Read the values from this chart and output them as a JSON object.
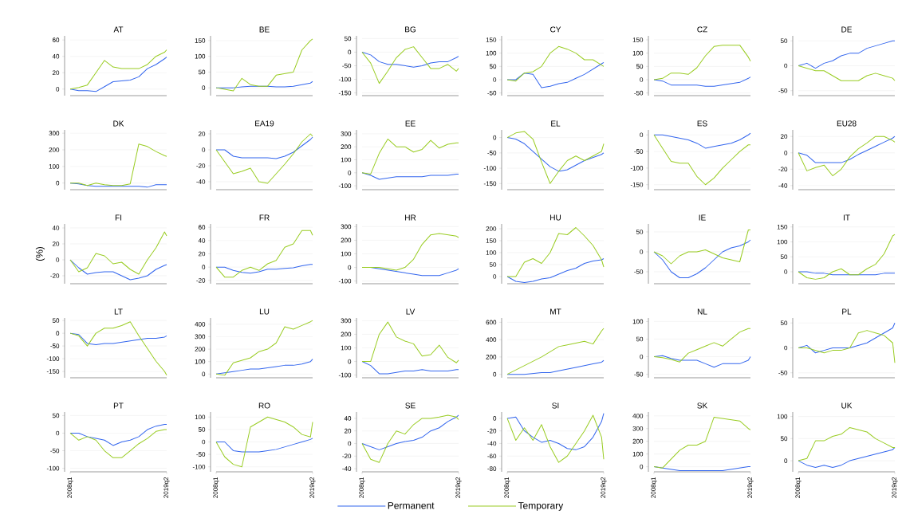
{
  "chart_data": [
    {
      "type": "line",
      "title": "AT",
      "x": [
        "2008-01",
        "2009-01",
        "2010-01",
        "2011-01",
        "2012-01",
        "2013-01",
        "2014-01",
        "2015-01",
        "2016-01",
        "2017-01",
        "2018-01",
        "2019-01",
        "2019-04"
      ],
      "xlim": [
        "2008-01",
        "2019-04"
      ],
      "ylim": [
        -8,
        65
      ],
      "yticks": [
        0,
        20,
        40,
        60
      ],
      "grid": "y",
      "tick_labels": "y",
      "legend": "bottom",
      "series": [
        {
          "name": "Permanent",
          "color": "#3366ee",
          "values": [
            0,
            -2,
            -2,
            -3,
            3,
            9,
            10,
            11,
            15,
            25,
            30,
            37,
            39
          ]
        },
        {
          "name": "Temporary",
          "color": "#99cc22",
          "values": [
            0,
            2,
            5,
            20,
            35,
            27,
            25,
            25,
            25,
            30,
            40,
            45,
            48
          ]
        }
      ]
    },
    {
      "type": "line",
      "title": "BE",
      "x": [
        "2008-01",
        "2009-01",
        "2010-01",
        "2011-01",
        "2012-01",
        "2013-01",
        "2014-01",
        "2015-01",
        "2016-01",
        "2017-01",
        "2018-01",
        "2019-01",
        "2019-04"
      ],
      "xlim": [
        "2008-01",
        "2019-04"
      ],
      "ylim": [
        -25,
        165
      ],
      "yticks": [
        0,
        50,
        100,
        150
      ],
      "grid": "y",
      "tick_labels": "y",
      "series": [
        {
          "color": "#3366ee",
          "values": [
            0,
            0,
            0,
            3,
            5,
            5,
            5,
            3,
            3,
            5,
            10,
            15,
            20
          ]
        },
        {
          "color": "#99cc22",
          "values": [
            0,
            -5,
            -10,
            30,
            10,
            5,
            5,
            40,
            45,
            50,
            120,
            150,
            155
          ]
        }
      ]
    },
    {
      "type": "line",
      "title": "BG",
      "x": [
        "2008-01",
        "2009-01",
        "2010-01",
        "2011-01",
        "2012-01",
        "2013-01",
        "2014-01",
        "2015-01",
        "2016-01",
        "2017-01",
        "2018-01",
        "2019-01",
        "2019-04"
      ],
      "xlim": [
        "2008-01",
        "2019-04"
      ],
      "ylim": [
        -160,
        60
      ],
      "yticks": [
        -150,
        -100,
        -50,
        0,
        50
      ],
      "grid": "y",
      "tick_labels": "y",
      "series": [
        {
          "color": "#3366ee",
          "values": [
            0,
            -10,
            -35,
            -45,
            -45,
            -50,
            -55,
            -50,
            -40,
            -35,
            -35,
            -20,
            -15
          ]
        },
        {
          "color": "#99cc22",
          "values": [
            0,
            -40,
            -115,
            -70,
            -20,
            10,
            20,
            -20,
            -60,
            -60,
            -45,
            -70,
            -60
          ]
        }
      ]
    },
    {
      "type": "line",
      "title": "CY",
      "x": [
        "2008-01",
        "2009-01",
        "2010-01",
        "2011-01",
        "2012-01",
        "2013-01",
        "2014-01",
        "2015-01",
        "2016-01",
        "2017-01",
        "2018-01",
        "2019-01",
        "2019-04"
      ],
      "xlim": [
        "2008-01",
        "2019-04"
      ],
      "ylim": [
        -60,
        165
      ],
      "yticks": [
        -50,
        0,
        50,
        100,
        150
      ],
      "grid": "y",
      "tick_labels": "y",
      "series": [
        {
          "color": "#3366ee",
          "values": [
            0,
            0,
            25,
            20,
            -30,
            -25,
            -15,
            -10,
            5,
            20,
            40,
            60,
            65
          ]
        },
        {
          "color": "#99cc22",
          "values": [
            0,
            -5,
            25,
            30,
            50,
            100,
            125,
            115,
            100,
            75,
            75,
            55,
            50
          ]
        }
      ]
    },
    {
      "type": "line",
      "title": "CZ",
      "x": [
        "2008-01",
        "2009-01",
        "2010-01",
        "2011-01",
        "2012-01",
        "2013-01",
        "2014-01",
        "2015-01",
        "2016-01",
        "2017-01",
        "2018-01",
        "2019-01",
        "2019-04"
      ],
      "xlim": [
        "2008-01",
        "2019-04"
      ],
      "ylim": [
        -60,
        165
      ],
      "yticks": [
        -50,
        0,
        50,
        100,
        150
      ],
      "grid": "y",
      "tick_labels": "y",
      "series": [
        {
          "color": "#3366ee",
          "values": [
            0,
            -5,
            -20,
            -20,
            -20,
            -20,
            -25,
            -25,
            -20,
            -15,
            -10,
            5,
            10
          ]
        },
        {
          "color": "#99cc22",
          "values": [
            0,
            5,
            25,
            25,
            20,
            45,
            90,
            125,
            130,
            130,
            130,
            85,
            70
          ]
        }
      ]
    },
    {
      "type": "line",
      "title": "DE",
      "x": [
        "2008-01",
        "2009-01",
        "2010-01",
        "2011-01",
        "2012-01",
        "2013-01",
        "2014-01",
        "2015-01",
        "2016-01",
        "2017-01",
        "2018-01",
        "2019-01",
        "2019-04"
      ],
      "xlim": [
        "2008-01",
        "2019-04"
      ],
      "ylim": [
        -60,
        60
      ],
      "yticks": [
        -50,
        0,
        50
      ],
      "grid": "y",
      "tick_labels": "y",
      "series": [
        {
          "color": "#3366ee",
          "values": [
            0,
            5,
            -5,
            5,
            10,
            20,
            25,
            25,
            35,
            40,
            45,
            50,
            50
          ]
        },
        {
          "color": "#99cc22",
          "values": [
            0,
            -5,
            -10,
            -10,
            -20,
            -30,
            -30,
            -30,
            -20,
            -15,
            -20,
            -25,
            -30
          ]
        }
      ]
    },
    {
      "type": "line",
      "title": "DK",
      "x": [
        "2008-01",
        "2009-01",
        "2010-01",
        "2011-01",
        "2012-01",
        "2013-01",
        "2014-01",
        "2015-01",
        "2016-01",
        "2017-01",
        "2018-01",
        "2019-01",
        "2019-04"
      ],
      "xlim": [
        "2008-01",
        "2019-04"
      ],
      "ylim": [
        -40,
        320
      ],
      "yticks": [
        0,
        100,
        200,
        300
      ],
      "grid": "y",
      "tick_labels": "y",
      "series": [
        {
          "color": "#3366ee",
          "values": [
            0,
            -5,
            -15,
            -20,
            -20,
            -20,
            -20,
            -20,
            -20,
            -25,
            -10,
            -10,
            -10
          ]
        },
        {
          "color": "#99cc22",
          "values": [
            0,
            0,
            -15,
            0,
            -10,
            -15,
            -15,
            -5,
            235,
            220,
            190,
            165,
            160
          ]
        }
      ]
    },
    {
      "type": "line",
      "title": "EA19",
      "x": [
        "2008-01",
        "2009-01",
        "2010-01",
        "2011-01",
        "2012-01",
        "2013-01",
        "2014-01",
        "2015-01",
        "2016-01",
        "2017-01",
        "2018-01",
        "2019-01",
        "2019-04"
      ],
      "xlim": [
        "2008-01",
        "2019-04"
      ],
      "ylim": [
        -50,
        25
      ],
      "yticks": [
        -40,
        -20,
        0,
        20
      ],
      "grid": "y",
      "tick_labels": "y",
      "series": [
        {
          "color": "#3366ee",
          "values": [
            0,
            0,
            -8,
            -10,
            -10,
            -10,
            -10,
            -11,
            -8,
            -3,
            5,
            13,
            16
          ]
        },
        {
          "color": "#99cc22",
          "values": [
            0,
            -15,
            -30,
            -27,
            -23,
            -40,
            -42,
            -30,
            -18,
            -5,
            10,
            20,
            17
          ]
        }
      ]
    },
    {
      "type": "line",
      "title": "EE",
      "x": [
        "2008-01",
        "2009-01",
        "2010-01",
        "2011-01",
        "2012-01",
        "2013-01",
        "2014-01",
        "2015-01",
        "2016-01",
        "2017-01",
        "2018-01",
        "2019-01",
        "2019-04"
      ],
      "xlim": [
        "2008-01",
        "2019-04"
      ],
      "ylim": [
        -130,
        330
      ],
      "yticks": [
        -100,
        0,
        100,
        200,
        300
      ],
      "grid": "y",
      "tick_labels": "y",
      "series": [
        {
          "color": "#3366ee",
          "values": [
            0,
            -20,
            -50,
            -40,
            -30,
            -30,
            -30,
            -30,
            -20,
            -20,
            -20,
            -10,
            -10
          ]
        },
        {
          "color": "#99cc22",
          "values": [
            0,
            -10,
            150,
            260,
            200,
            200,
            160,
            180,
            250,
            190,
            220,
            230,
            230
          ]
        }
      ]
    },
    {
      "type": "line",
      "title": "EL",
      "x": [
        "2008-01",
        "2009-01",
        "2010-01",
        "2011-01",
        "2012-01",
        "2013-01",
        "2014-01",
        "2015-01",
        "2016-01",
        "2017-01",
        "2018-01",
        "2019-01",
        "2019-04"
      ],
      "xlim": [
        "2008-01",
        "2019-04"
      ],
      "ylim": [
        -170,
        25
      ],
      "yticks": [
        -150,
        -100,
        -50,
        0
      ],
      "grid": "y",
      "tick_labels": "y",
      "series": [
        {
          "color": "#3366ee",
          "values": [
            0,
            -5,
            -20,
            -45,
            -70,
            -95,
            -110,
            -105,
            -90,
            -75,
            -65,
            -55,
            -50
          ]
        },
        {
          "color": "#99cc22",
          "values": [
            0,
            15,
            20,
            -5,
            -80,
            -150,
            -110,
            -75,
            -60,
            -75,
            -60,
            -45,
            -20
          ]
        }
      ]
    },
    {
      "type": "line",
      "title": "ES",
      "x": [
        "2008-01",
        "2009-01",
        "2010-01",
        "2011-01",
        "2012-01",
        "2013-01",
        "2014-01",
        "2015-01",
        "2016-01",
        "2017-01",
        "2018-01",
        "2019-01",
        "2019-04"
      ],
      "xlim": [
        "2008-01",
        "2019-04"
      ],
      "ylim": [
        -165,
        15
      ],
      "yticks": [
        -150,
        -100,
        -50,
        0
      ],
      "grid": "y",
      "tick_labels": "y",
      "series": [
        {
          "color": "#3366ee",
          "values": [
            0,
            0,
            -5,
            -10,
            -15,
            -25,
            -40,
            -35,
            -30,
            -25,
            -15,
            0,
            5
          ]
        },
        {
          "color": "#99cc22",
          "values": [
            0,
            -40,
            -80,
            -85,
            -85,
            -125,
            -150,
            -130,
            -100,
            -75,
            -50,
            -30,
            -30
          ]
        }
      ]
    },
    {
      "type": "line",
      "title": "EU28",
      "x": [
        "2008-01",
        "2009-01",
        "2010-01",
        "2011-01",
        "2012-01",
        "2013-01",
        "2014-01",
        "2015-01",
        "2016-01",
        "2017-01",
        "2018-01",
        "2019-01",
        "2019-04"
      ],
      "xlim": [
        "2008-01",
        "2019-04"
      ],
      "ylim": [
        -45,
        28
      ],
      "yticks": [
        -40,
        -20,
        0,
        20
      ],
      "grid": "y",
      "tick_labels": "y",
      "series": [
        {
          "color": "#3366ee",
          "values": [
            0,
            -3,
            -12,
            -12,
            -12,
            -12,
            -8,
            -2,
            3,
            8,
            13,
            18,
            20
          ]
        },
        {
          "color": "#99cc22",
          "values": [
            0,
            -22,
            -18,
            -15,
            -28,
            -20,
            -5,
            5,
            12,
            20,
            20,
            15,
            13
          ]
        }
      ]
    },
    {
      "type": "line",
      "title": "FI",
      "ylabel": "(%)",
      "x": [
        "2008-01",
        "2009-01",
        "2010-01",
        "2011-01",
        "2012-01",
        "2013-01",
        "2014-01",
        "2015-01",
        "2016-01",
        "2017-01",
        "2018-01",
        "2019-01",
        "2019-04"
      ],
      "xlim": [
        "2008-01",
        "2019-04"
      ],
      "ylim": [
        -30,
        45
      ],
      "yticks": [
        -20,
        0,
        20,
        40
      ],
      "grid": "y",
      "tick_labels": "y",
      "series": [
        {
          "color": "#3366ee",
          "values": [
            0,
            -10,
            -18,
            -16,
            -15,
            -15,
            -20,
            -25,
            -23,
            -20,
            -12,
            -7,
            -6
          ]
        },
        {
          "color": "#99cc22",
          "values": [
            0,
            -15,
            -10,
            8,
            5,
            -5,
            -3,
            -12,
            -18,
            0,
            15,
            35,
            30
          ]
        }
      ]
    },
    {
      "type": "line",
      "title": "FR",
      "x": [
        "2008-01",
        "2009-01",
        "2010-01",
        "2011-01",
        "2012-01",
        "2013-01",
        "2014-01",
        "2015-01",
        "2016-01",
        "2017-01",
        "2018-01",
        "2019-01",
        "2019-04"
      ],
      "xlim": [
        "2008-01",
        "2019-04"
      ],
      "ylim": [
        -25,
        65
      ],
      "yticks": [
        -20,
        0,
        20,
        40,
        60
      ],
      "grid": "y",
      "tick_labels": "y",
      "series": [
        {
          "color": "#3366ee",
          "values": [
            0,
            0,
            -5,
            -8,
            -9,
            -7,
            -3,
            -3,
            -2,
            -1,
            2,
            4,
            4
          ]
        },
        {
          "color": "#99cc22",
          "values": [
            0,
            -15,
            -15,
            -5,
            0,
            -5,
            5,
            10,
            30,
            35,
            55,
            55,
            48
          ]
        }
      ]
    },
    {
      "type": "line",
      "title": "HR",
      "x": [
        "2008-01",
        "2009-01",
        "2010-01",
        "2011-01",
        "2012-01",
        "2013-01",
        "2014-01",
        "2015-01",
        "2016-01",
        "2017-01",
        "2018-01",
        "2019-01",
        "2019-04"
      ],
      "xlim": [
        "2008-01",
        "2019-04"
      ],
      "ylim": [
        -120,
        320
      ],
      "yticks": [
        -100,
        0,
        100,
        200,
        300
      ],
      "grid": "y",
      "tick_labels": "y",
      "series": [
        {
          "color": "#3366ee",
          "values": [
            0,
            0,
            -10,
            -20,
            -30,
            -40,
            -50,
            -60,
            -60,
            -60,
            -40,
            -20,
            -10
          ]
        },
        {
          "color": "#99cc22",
          "values": [
            0,
            0,
            0,
            -10,
            -20,
            0,
            60,
            170,
            240,
            250,
            240,
            230,
            220
          ]
        }
      ]
    },
    {
      "type": "line",
      "title": "HU",
      "x": [
        "2008-01",
        "2009-01",
        "2010-01",
        "2011-01",
        "2012-01",
        "2013-01",
        "2014-01",
        "2015-01",
        "2016-01",
        "2017-01",
        "2018-01",
        "2019-01",
        "2019-04"
      ],
      "xlim": [
        "2008-01",
        "2019-04"
      ],
      "ylim": [
        -30,
        220
      ],
      "yticks": [
        0,
        50,
        100,
        150,
        200
      ],
      "grid": "y",
      "tick_labels": "y",
      "series": [
        {
          "color": "#3366ee",
          "values": [
            0,
            -20,
            -25,
            -20,
            -10,
            -5,
            10,
            25,
            35,
            55,
            65,
            70,
            75
          ]
        },
        {
          "color": "#99cc22",
          "values": [
            0,
            0,
            60,
            75,
            55,
            100,
            180,
            175,
            205,
            170,
            130,
            70,
            40
          ]
        }
      ]
    },
    {
      "type": "line",
      "title": "IE",
      "x": [
        "2008-01",
        "2009-01",
        "2010-01",
        "2011-01",
        "2012-01",
        "2013-01",
        "2014-01",
        "2015-01",
        "2016-01",
        "2017-01",
        "2018-01",
        "2019-01",
        "2019-04"
      ],
      "xlim": [
        "2008-01",
        "2019-04"
      ],
      "ylim": [
        -80,
        70
      ],
      "yticks": [
        -50,
        0,
        50
      ],
      "grid": "y",
      "tick_labels": "y",
      "series": [
        {
          "color": "#3366ee",
          "values": [
            0,
            -20,
            -50,
            -65,
            -65,
            -55,
            -40,
            -20,
            0,
            10,
            15,
            25,
            30
          ]
        },
        {
          "color": "#99cc22",
          "values": [
            0,
            -10,
            -30,
            -10,
            0,
            0,
            5,
            -5,
            -15,
            -20,
            -25,
            55,
            55
          ]
        }
      ]
    },
    {
      "type": "line",
      "title": "IT",
      "x": [
        "2008-01",
        "2009-01",
        "2010-01",
        "2011-01",
        "2012-01",
        "2013-01",
        "2014-01",
        "2015-01",
        "2016-01",
        "2017-01",
        "2018-01",
        "2019-01",
        "2019-04"
      ],
      "xlim": [
        "2008-01",
        "2019-04"
      ],
      "ylim": [
        -40,
        160
      ],
      "yticks": [
        0,
        50,
        100,
        150
      ],
      "grid": "y",
      "tick_labels": "y",
      "series": [
        {
          "color": "#3366ee",
          "values": [
            0,
            0,
            -5,
            -5,
            -10,
            -10,
            -10,
            -10,
            -10,
            -10,
            -5,
            -5,
            -5
          ]
        },
        {
          "color": "#99cc22",
          "values": [
            0,
            -20,
            -25,
            -20,
            0,
            10,
            -10,
            -10,
            10,
            25,
            60,
            120,
            125
          ]
        }
      ]
    },
    {
      "type": "line",
      "title": "LT",
      "x": [
        "2008-01",
        "2009-01",
        "2010-01",
        "2011-01",
        "2012-01",
        "2013-01",
        "2014-01",
        "2015-01",
        "2016-01",
        "2017-01",
        "2018-01",
        "2019-01",
        "2019-04"
      ],
      "xlim": [
        "2008-01",
        "2019-04"
      ],
      "ylim": [
        -175,
        60
      ],
      "yticks": [
        -150,
        -100,
        -50,
        0,
        50
      ],
      "grid": "y",
      "tick_labels": "y",
      "series": [
        {
          "color": "#3366ee",
          "values": [
            0,
            -5,
            -40,
            -45,
            -40,
            -40,
            -35,
            -30,
            -25,
            -20,
            -20,
            -15,
            -10
          ]
        },
        {
          "color": "#99cc22",
          "values": [
            0,
            -10,
            -50,
            0,
            20,
            20,
            30,
            45,
            -10,
            -60,
            -110,
            -150,
            -165
          ]
        }
      ]
    },
    {
      "type": "line",
      "title": "LU",
      "x": [
        "2008-01",
        "2009-01",
        "2010-01",
        "2011-01",
        "2012-01",
        "2013-01",
        "2014-01",
        "2015-01",
        "2016-01",
        "2017-01",
        "2018-01",
        "2019-01",
        "2019-04"
      ],
      "xlim": [
        "2008-01",
        "2019-04"
      ],
      "ylim": [
        -30,
        450
      ],
      "yticks": [
        0,
        100,
        200,
        300,
        400
      ],
      "grid": "y",
      "tick_labels": "y",
      "series": [
        {
          "color": "#3366ee",
          "values": [
            0,
            10,
            20,
            30,
            40,
            40,
            50,
            60,
            70,
            70,
            80,
            100,
            120
          ]
        },
        {
          "color": "#99cc22",
          "values": [
            0,
            -10,
            90,
            110,
            130,
            180,
            200,
            250,
            380,
            360,
            390,
            420,
            430
          ]
        }
      ]
    },
    {
      "type": "line",
      "title": "LV",
      "x": [
        "2008-01",
        "2009-01",
        "2010-01",
        "2011-01",
        "2012-01",
        "2013-01",
        "2014-01",
        "2015-01",
        "2016-01",
        "2017-01",
        "2018-01",
        "2019-01",
        "2019-04"
      ],
      "xlim": [
        "2008-01",
        "2019-04"
      ],
      "ylim": [
        -120,
        320
      ],
      "yticks": [
        -100,
        0,
        100,
        200,
        300
      ],
      "grid": "y",
      "tick_labels": "y",
      "series": [
        {
          "color": "#3366ee",
          "values": [
            0,
            -30,
            -90,
            -90,
            -80,
            -70,
            -70,
            -60,
            -70,
            -70,
            -70,
            -60,
            -60
          ]
        },
        {
          "color": "#99cc22",
          "values": [
            0,
            0,
            200,
            290,
            180,
            150,
            130,
            40,
            50,
            120,
            30,
            -10,
            10
          ]
        }
      ]
    },
    {
      "type": "line",
      "title": "MT",
      "x": [
        "2008-01",
        "2009-01",
        "2010-01",
        "2011-01",
        "2012-01",
        "2013-01",
        "2014-01",
        "2015-01",
        "2016-01",
        "2017-01",
        "2018-01",
        "2019-01",
        "2019-04"
      ],
      "xlim": [
        "2008-01",
        "2019-04"
      ],
      "ylim": [
        -40,
        650
      ],
      "yticks": [
        0,
        200,
        400,
        600
      ],
      "grid": "y",
      "tick_labels": "y",
      "series": [
        {
          "color": "#3366ee",
          "values": [
            0,
            0,
            0,
            10,
            20,
            20,
            40,
            60,
            80,
            100,
            120,
            140,
            160
          ]
        },
        {
          "color": "#99cc22",
          "values": [
            0,
            50,
            100,
            150,
            200,
            260,
            320,
            340,
            360,
            380,
            350,
            500,
            530
          ]
        }
      ]
    },
    {
      "type": "line",
      "title": "NL",
      "x": [
        "2008-01",
        "2009-01",
        "2010-01",
        "2011-01",
        "2012-01",
        "2013-01",
        "2014-01",
        "2015-01",
        "2016-01",
        "2017-01",
        "2018-01",
        "2019-01",
        "2019-04"
      ],
      "xlim": [
        "2008-01",
        "2019-04"
      ],
      "ylim": [
        -60,
        110
      ],
      "yticks": [
        -50,
        0,
        50,
        100
      ],
      "grid": "y",
      "tick_labels": "y",
      "series": [
        {
          "color": "#3366ee",
          "values": [
            0,
            3,
            -5,
            -10,
            -10,
            -10,
            -20,
            -30,
            -20,
            -20,
            -20,
            -10,
            0
          ]
        },
        {
          "color": "#99cc22",
          "values": [
            0,
            -3,
            -8,
            -15,
            10,
            20,
            30,
            40,
            30,
            50,
            70,
            80,
            80
          ]
        }
      ]
    },
    {
      "type": "line",
      "title": "PL",
      "x": [
        "2008-01",
        "2009-01",
        "2010-01",
        "2011-01",
        "2012-01",
        "2013-01",
        "2014-01",
        "2015-01",
        "2016-01",
        "2017-01",
        "2018-01",
        "2019-01",
        "2019-04"
      ],
      "xlim": [
        "2008-01",
        "2019-04"
      ],
      "ylim": [
        -60,
        60
      ],
      "yticks": [
        -50,
        0,
        50
      ],
      "grid": "y",
      "tick_labels": "y",
      "series": [
        {
          "color": "#3366ee",
          "values": [
            0,
            5,
            -10,
            -5,
            0,
            0,
            0,
            5,
            10,
            20,
            30,
            40,
            50
          ]
        },
        {
          "color": "#99cc22",
          "values": [
            0,
            0,
            -5,
            -10,
            -5,
            -5,
            0,
            30,
            35,
            30,
            25,
            10,
            -30
          ]
        }
      ]
    },
    {
      "type": "line",
      "title": "PT",
      "x": [
        "2008-01",
        "2009-01",
        "2010-01",
        "2011-01",
        "2012-01",
        "2013-01",
        "2014-01",
        "2015-01",
        "2016-01",
        "2017-01",
        "2018-01",
        "2019-01",
        "2019-04"
      ],
      "xlim": [
        "2008-01",
        "2019-04"
      ],
      "ylim": [
        -110,
        60
      ],
      "xticks": [
        {
          "value": "2008-01",
          "label": "2008q1"
        },
        {
          "value": "2019-04",
          "label": "2019q2"
        }
      ],
      "yticks": [
        -100,
        -50,
        0,
        50
      ],
      "grid": "y",
      "series": [
        {
          "color": "#3366ee",
          "values": [
            0,
            0,
            -10,
            -15,
            -20,
            -35,
            -25,
            -20,
            -10,
            10,
            20,
            25,
            25
          ]
        },
        {
          "color": "#99cc22",
          "values": [
            0,
            -20,
            -10,
            -20,
            -50,
            -70,
            -70,
            -50,
            -30,
            -15,
            5,
            10,
            10
          ]
        }
      ]
    },
    {
      "type": "line",
      "title": "RO",
      "x": [
        "2008-01",
        "2009-01",
        "2010-01",
        "2011-01",
        "2012-01",
        "2013-01",
        "2014-01",
        "2015-01",
        "2016-01",
        "2017-01",
        "2018-01",
        "2019-01",
        "2019-04"
      ],
      "xlim": [
        "2008-01",
        "2019-04"
      ],
      "ylim": [
        -120,
        120
      ],
      "xticks": [
        {
          "value": "2008-01",
          "label": "2008q1"
        },
        {
          "value": "2019-04",
          "label": "2019q2"
        }
      ],
      "yticks": [
        -100,
        -50,
        0,
        50,
        100
      ],
      "grid": "y",
      "series": [
        {
          "color": "#3366ee",
          "values": [
            0,
            0,
            -35,
            -40,
            -40,
            -40,
            -35,
            -30,
            -20,
            -10,
            0,
            10,
            15
          ]
        },
        {
          "color": "#99cc22",
          "values": [
            0,
            -60,
            -90,
            -100,
            60,
            80,
            100,
            90,
            80,
            60,
            30,
            20,
            80
          ]
        }
      ]
    },
    {
      "type": "line",
      "title": "SE",
      "x": [
        "2008-01",
        "2009-01",
        "2010-01",
        "2011-01",
        "2012-01",
        "2013-01",
        "2014-01",
        "2015-01",
        "2016-01",
        "2017-01",
        "2018-01",
        "2019-01",
        "2019-04"
      ],
      "xlim": [
        "2008-01",
        "2019-04"
      ],
      "ylim": [
        -45,
        50
      ],
      "xticks": [
        {
          "value": "2008-01",
          "label": "2008q1"
        },
        {
          "value": "2019-04",
          "label": "2019q2"
        }
      ],
      "yticks": [
        -40,
        -20,
        0,
        20,
        40
      ],
      "grid": "y",
      "series": [
        {
          "color": "#3366ee",
          "values": [
            0,
            -5,
            -10,
            -5,
            0,
            3,
            5,
            10,
            20,
            25,
            35,
            42,
            45
          ]
        },
        {
          "color": "#99cc22",
          "values": [
            0,
            -25,
            -30,
            0,
            20,
            15,
            30,
            40,
            40,
            42,
            45,
            42,
            38
          ]
        }
      ]
    },
    {
      "type": "line",
      "title": "SI",
      "x": [
        "2008-01",
        "2009-01",
        "2010-01",
        "2011-01",
        "2012-01",
        "2013-01",
        "2014-01",
        "2015-01",
        "2016-01",
        "2017-01",
        "2018-01",
        "2019-01",
        "2019-04"
      ],
      "xlim": [
        "2008-01",
        "2019-04"
      ],
      "ylim": [
        -85,
        10
      ],
      "xticks": [
        {
          "value": "2008-01",
          "label": "2008q1"
        },
        {
          "value": "2019-04",
          "label": "2019q2"
        }
      ],
      "yticks": [
        -80,
        -60,
        -40,
        -20,
        0
      ],
      "grid": "y",
      "series": [
        {
          "color": "#3366ee",
          "values": [
            0,
            2,
            -20,
            -30,
            -38,
            -35,
            -40,
            -48,
            -50,
            -45,
            -30,
            -5,
            8
          ]
        },
        {
          "color": "#99cc22",
          "values": [
            0,
            -35,
            -15,
            -35,
            -10,
            -45,
            -70,
            -60,
            -40,
            -20,
            5,
            -30,
            -65
          ]
        }
      ]
    },
    {
      "type": "line",
      "title": "SK",
      "x": [
        "2008-01",
        "2009-01",
        "2010-01",
        "2011-01",
        "2012-01",
        "2013-01",
        "2014-01",
        "2015-01",
        "2016-01",
        "2017-01",
        "2018-01",
        "2019-01",
        "2019-04"
      ],
      "xlim": [
        "2008-01",
        "2019-04"
      ],
      "ylim": [
        -40,
        430
      ],
      "xticks": [
        {
          "value": "2008-01",
          "label": "2008q1"
        },
        {
          "value": "2019-04",
          "label": "2019q2"
        }
      ],
      "yticks": [
        0,
        100,
        200,
        300,
        400
      ],
      "grid": "y",
      "series": [
        {
          "color": "#3366ee",
          "values": [
            0,
            -10,
            -20,
            -30,
            -30,
            -30,
            -30,
            -30,
            -30,
            -20,
            -10,
            0,
            0
          ]
        },
        {
          "color": "#99cc22",
          "values": [
            0,
            -10,
            60,
            130,
            170,
            170,
            200,
            390,
            380,
            370,
            360,
            300,
            290
          ]
        }
      ]
    },
    {
      "type": "line",
      "title": "UK",
      "x": [
        "2008-01",
        "2009-01",
        "2010-01",
        "2011-01",
        "2012-01",
        "2013-01",
        "2014-01",
        "2015-01",
        "2016-01",
        "2017-01",
        "2018-01",
        "2019-01",
        "2019-04"
      ],
      "xlim": [
        "2008-01",
        "2019-04"
      ],
      "ylim": [
        -25,
        110
      ],
      "xticks": [
        {
          "value": "2008-01",
          "label": "2008q1"
        },
        {
          "value": "2019-04",
          "label": "2019q2"
        }
      ],
      "yticks": [
        0,
        50,
        100
      ],
      "grid": "y",
      "series": [
        {
          "color": "#3366ee",
          "values": [
            0,
            -10,
            -15,
            -10,
            -15,
            -10,
            0,
            5,
            10,
            15,
            20,
            25,
            30
          ]
        },
        {
          "color": "#99cc22",
          "values": [
            0,
            5,
            45,
            45,
            55,
            60,
            75,
            70,
            65,
            50,
            40,
            30,
            30
          ]
        }
      ]
    }
  ]
}
